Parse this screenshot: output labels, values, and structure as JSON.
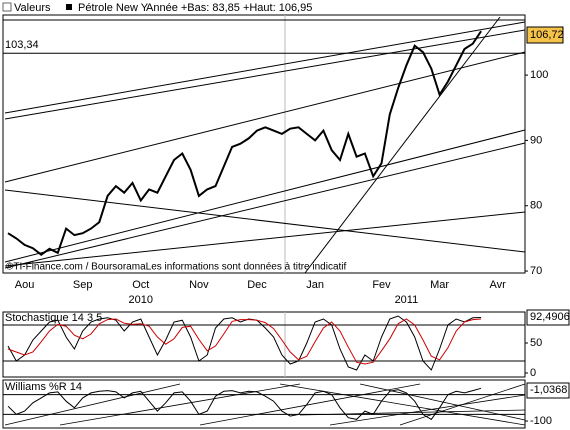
{
  "chart_data": [
    {
      "type": "line",
      "title": "Valeurs",
      "subtitle": "Année +Bas: 83,85 +Haut: 106,95",
      "annotation": "©TI-Finance.com / BoursoramaLes informations sont données à titre indicatif",
      "categories": [
        null,
        null,
        "Aou",
        null,
        null,
        null,
        null,
        null,
        null,
        "Sep",
        null,
        null,
        null,
        null,
        null,
        null,
        "Oct",
        null,
        null,
        null,
        null,
        null,
        null,
        "Nov",
        null,
        null,
        null,
        null,
        null,
        null,
        "Dec",
        null,
        null,
        null,
        null,
        null,
        null,
        "Jan",
        null,
        null,
        null,
        null,
        null,
        null,
        null,
        "Fev",
        null,
        null,
        null,
        null,
        null,
        null,
        "Mar",
        null,
        null,
        null,
        null,
        null,
        null,
        "Avr",
        null,
        null,
        null
      ],
      "year_categories": [
        null,
        null,
        null,
        null,
        null,
        null,
        null,
        null,
        null,
        null,
        null,
        null,
        null,
        null,
        null,
        null,
        "2010",
        null,
        null,
        null,
        null,
        null,
        null,
        null,
        null,
        null,
        null,
        null,
        null,
        null,
        null,
        null,
        null,
        null,
        null,
        null,
        null,
        null,
        null,
        null,
        null,
        null,
        null,
        null,
        null,
        null,
        null,
        null,
        "2011",
        null,
        null,
        null,
        null,
        null,
        null,
        null,
        null,
        null,
        null,
        null,
        null,
        null,
        null
      ],
      "series": [
        {
          "name": "Pétrole New Y",
          "color": "#000000",
          "values": [
            75.8,
            75.0,
            74.0,
            73.5,
            72.5,
            73.4,
            72.8,
            76.5,
            75.5,
            75.8,
            76.5,
            77.5,
            81.5,
            83.0,
            82.0,
            83.5,
            80.8,
            82.5,
            82.0,
            84.5,
            87.0,
            88.0,
            85.5,
            81.5,
            82.5,
            83.0,
            86.0,
            89.0,
            89.5,
            90.3,
            91.5,
            92.0,
            91.5,
            91.0,
            91.8,
            92.0,
            91.0,
            90.0,
            91.5,
            88.5,
            87.0,
            91.0,
            87.5,
            88.0,
            84.5,
            86.5,
            94.0,
            98.0,
            101.5,
            104.5,
            103.5,
            101.0,
            97.0,
            99.0,
            101.5,
            104.0,
            104.8,
            106.72,
            null,
            null,
            null,
            null,
            null
          ],
          "value_labels": [
            null,
            null,
            null,
            null,
            null,
            null,
            null,
            null,
            null,
            null,
            null,
            null,
            null,
            null,
            null,
            null,
            null,
            null,
            null,
            null,
            null,
            null,
            null,
            null,
            null,
            null,
            null,
            null,
            null,
            null,
            null,
            null,
            null,
            null,
            null,
            null,
            null,
            null,
            null,
            null,
            null,
            null,
            null,
            null,
            null,
            null,
            null,
            null,
            null,
            null,
            null,
            null,
            null,
            null,
            null,
            null,
            null,
            "106,72",
            null,
            null,
            null,
            null,
            null
          ]
        }
      ],
      "reference_line": {
        "value": 103.34,
        "label": "103,34"
      },
      "ylim": [
        69.7,
        109.2
      ],
      "yticks": [
        70,
        80,
        90,
        100
      ]
    },
    {
      "type": "line",
      "title": "Stochastique 14 3 5",
      "series": [
        {
          "color": "#000000",
          "values": [
            45,
            20,
            30,
            55,
            70,
            85,
            88,
            60,
            40,
            70,
            85,
            90,
            92,
            88,
            70,
            85,
            90,
            60,
            30,
            55,
            85,
            88,
            60,
            20,
            30,
            75,
            90,
            92,
            85,
            90,
            88,
            75,
            60,
            30,
            15,
            20,
            50,
            85,
            90,
            80,
            40,
            10,
            5,
            30,
            20,
            60,
            90,
            95,
            85,
            60,
            20,
            5,
            40,
            80,
            90,
            85,
            92,
            92.4906
          ],
          "value_labels": [
            null,
            null,
            null,
            null,
            null,
            null,
            null,
            null,
            null,
            null,
            null,
            null,
            null,
            null,
            null,
            null,
            null,
            null,
            null,
            null,
            null,
            null,
            null,
            null,
            null,
            null,
            null,
            null,
            null,
            null,
            null,
            null,
            null,
            null,
            null,
            null,
            null,
            null,
            null,
            null,
            null,
            null,
            null,
            null,
            null,
            null,
            null,
            null,
            null,
            null,
            null,
            null,
            null,
            null,
            null,
            null,
            null,
            "92,4906"
          ]
        },
        {
          "color": "#cc0000",
          "values": [
            40,
            35,
            30,
            35,
            52,
            70,
            81,
            78,
            63,
            57,
            65,
            82,
            89,
            90,
            83,
            81,
            82,
            78,
            60,
            48,
            57,
            76,
            78,
            56,
            37,
            45,
            65,
            86,
            89,
            89,
            88,
            84,
            74,
            55,
            35,
            22,
            28,
            52,
            75,
            85,
            70,
            43,
            18,
            15,
            18,
            37,
            57,
            82,
            90,
            80,
            55,
            28,
            22,
            42,
            70,
            85,
            89,
            90
          ]
        }
      ],
      "hlines": [
        80,
        20
      ],
      "ylim": [
        -6.7,
        101.7
      ],
      "yticks": [
        0,
        50
      ]
    },
    {
      "type": "line",
      "title": "Williams %R 14",
      "series": [
        {
          "color": "#000000",
          "values": [
            -55,
            -80,
            -70,
            -45,
            -30,
            -15,
            -12,
            -40,
            -60,
            -30,
            -15,
            -10,
            -8,
            -12,
            -30,
            -15,
            -10,
            -40,
            -70,
            -45,
            -15,
            -12,
            -40,
            -80,
            -70,
            -25,
            -10,
            -8,
            -15,
            -10,
            -12,
            -25,
            -40,
            -70,
            -85,
            -80,
            -50,
            -15,
            -10,
            -20,
            -60,
            -90,
            -95,
            -70,
            -80,
            -40,
            -10,
            -5,
            -15,
            -40,
            -80,
            -95,
            -60,
            -20,
            -10,
            -15,
            -8,
            -1.0368
          ],
          "value_labels": [
            null,
            null,
            null,
            null,
            null,
            null,
            null,
            null,
            null,
            null,
            null,
            null,
            null,
            null,
            null,
            null,
            null,
            null,
            null,
            null,
            null,
            null,
            null,
            null,
            null,
            null,
            null,
            null,
            null,
            null,
            null,
            null,
            null,
            null,
            null,
            null,
            null,
            null,
            null,
            null,
            null,
            null,
            null,
            null,
            null,
            null,
            null,
            null,
            null,
            null,
            null,
            null,
            null,
            null,
            null,
            null,
            null,
            "-1,0368"
          ]
        }
      ],
      "hlines": [
        -20,
        -80
      ],
      "ylim": [
        -121,
        24
      ],
      "yticks": [
        -100
      ]
    }
  ]
}
